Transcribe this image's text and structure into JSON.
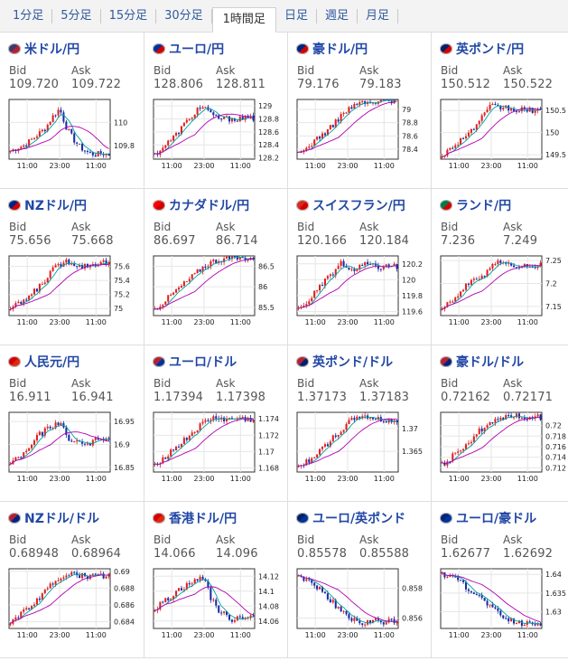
{
  "tabs": [
    "1分足",
    "5分足",
    "15分足",
    "30分足",
    "1時間足",
    "日足",
    "週足",
    "月足"
  ],
  "active_tab": "1時間足",
  "labels": {
    "bid": "Bid",
    "ask": "Ask"
  },
  "colors": {
    "up": "#e02020",
    "down": "#1c2aa6",
    "ma_fast": "#00a0a0",
    "ma_slow": "#b000b0",
    "link": "#2248a6"
  },
  "x_ticks": [
    "11:00",
    "23:00",
    "11:00"
  ],
  "pairs": [
    {
      "name": "米ドル/円",
      "flag": "flag-us-jp-icon",
      "bid": "109.720",
      "ask": "109.722",
      "chart_data": {
        "type": "candlestick",
        "y_ticks": [
          "110",
          "109.8"
        ],
        "ylim": [
          109.68,
          110.2
        ],
        "x_ticks": [
          "11:00",
          "23:00",
          "11:00"
        ],
        "path": [
          109.75,
          109.78,
          109.8,
          109.85,
          109.9,
          109.95,
          110.05,
          110.12,
          109.95,
          109.85,
          109.78,
          109.74,
          109.72,
          109.73,
          109.72
        ]
      }
    },
    {
      "name": "ユーロ/円",
      "flag": "flag-eu-jp-icon",
      "bid": "128.806",
      "ask": "128.811",
      "chart_data": {
        "type": "candlestick",
        "y_ticks": [
          "129",
          "128.8",
          "128.6",
          "128.4",
          "128.2"
        ],
        "ylim": [
          128.18,
          129.1
        ],
        "x_ticks": [
          "11:00",
          "23:00",
          "11:00"
        ],
        "path": [
          128.25,
          128.35,
          128.45,
          128.55,
          128.7,
          128.8,
          128.95,
          129.0,
          128.85,
          128.82,
          128.8,
          128.81,
          128.8,
          128.81,
          128.81
        ]
      }
    },
    {
      "name": "豪ドル/円",
      "flag": "flag-au-jp-icon",
      "bid": "79.176",
      "ask": "79.183",
      "chart_data": {
        "type": "candlestick",
        "y_ticks": [
          "79",
          "78.8",
          "78.6",
          "78.4"
        ],
        "ylim": [
          78.25,
          79.15
        ],
        "x_ticks": [
          "11:00",
          "23:00",
          "11:00"
        ],
        "path": [
          78.32,
          78.4,
          78.5,
          78.6,
          78.65,
          78.78,
          78.9,
          79.0,
          79.05,
          79.12,
          79.08,
          79.1,
          79.15,
          79.12,
          79.18
        ]
      }
    },
    {
      "name": "英ポンド/円",
      "flag": "flag-gb-jp-icon",
      "bid": "150.512",
      "ask": "150.522",
      "chart_data": {
        "type": "candlestick",
        "y_ticks": [
          "150.5",
          "150",
          "149.5"
        ],
        "ylim": [
          149.4,
          150.75
        ],
        "x_ticks": [
          "11:00",
          "23:00",
          "11:00"
        ],
        "path": [
          149.5,
          149.6,
          149.75,
          149.9,
          150.0,
          150.2,
          150.4,
          150.6,
          150.55,
          150.58,
          150.5,
          150.52,
          150.5,
          150.51,
          150.51
        ]
      }
    },
    {
      "name": "NZドル/円",
      "flag": "flag-nz-jp-icon",
      "bid": "75.656",
      "ask": "75.668",
      "chart_data": {
        "type": "candlestick",
        "y_ticks": [
          "75.6",
          "75.4",
          "75.2",
          "75"
        ],
        "ylim": [
          74.9,
          75.75
        ],
        "x_ticks": [
          "11:00",
          "23:00",
          "11:00"
        ],
        "path": [
          75.0,
          75.05,
          75.12,
          75.2,
          75.3,
          75.42,
          75.55,
          75.62,
          75.68,
          75.65,
          75.6,
          75.62,
          75.64,
          75.66,
          75.66
        ]
      }
    },
    {
      "name": "カナダドル/円",
      "flag": "flag-ca-jp-icon",
      "bid": "86.697",
      "ask": "86.714",
      "chart_data": {
        "type": "candlestick",
        "y_ticks": [
          "86.5",
          "86",
          "85.5"
        ],
        "ylim": [
          85.3,
          86.75
        ],
        "x_ticks": [
          "11:00",
          "23:00",
          "11:00"
        ],
        "path": [
          85.45,
          85.6,
          85.75,
          85.9,
          86.05,
          86.2,
          86.35,
          86.5,
          86.6,
          86.65,
          86.68,
          86.7,
          86.69,
          86.7,
          86.7
        ]
      }
    },
    {
      "name": "スイスフラン/円",
      "flag": "flag-ch-jp-icon",
      "bid": "120.166",
      "ask": "120.184",
      "chart_data": {
        "type": "candlestick",
        "y_ticks": [
          "120.2",
          "120",
          "119.8",
          "119.6"
        ],
        "ylim": [
          119.55,
          120.3
        ],
        "x_ticks": [
          "11:00",
          "23:00",
          "11:00"
        ],
        "path": [
          119.62,
          119.7,
          119.8,
          119.9,
          120.0,
          120.1,
          120.2,
          120.15,
          120.1,
          120.18,
          120.2,
          120.15,
          120.17,
          120.16,
          120.17
        ]
      }
    },
    {
      "name": "ランド/円",
      "flag": "flag-za-jp-icon",
      "bid": "7.236",
      "ask": "7.249",
      "chart_data": {
        "type": "candlestick",
        "y_ticks": [
          "7.25",
          "7.2",
          "7.15"
        ],
        "ylim": [
          7.13,
          7.26
        ],
        "x_ticks": [
          "11:00",
          "23:00",
          "11:00"
        ],
        "path": [
          7.15,
          7.16,
          7.17,
          7.19,
          7.2,
          7.21,
          7.22,
          7.24,
          7.25,
          7.24,
          7.24,
          7.23,
          7.24,
          7.24,
          7.24
        ]
      }
    },
    {
      "name": "人民元/円",
      "flag": "flag-cn-jp-icon",
      "bid": "16.911",
      "ask": "16.941",
      "chart_data": {
        "type": "candlestick",
        "y_ticks": [
          "16.95",
          "16.9",
          "16.85"
        ],
        "ylim": [
          16.84,
          16.97
        ],
        "x_ticks": [
          "11:00",
          "23:00",
          "11:00"
        ],
        "path": [
          16.86,
          16.87,
          16.88,
          16.9,
          16.92,
          16.93,
          16.94,
          16.95,
          16.92,
          16.9,
          16.91,
          16.9,
          16.91,
          16.91,
          16.91
        ]
      }
    },
    {
      "name": "ユーロ/ドル",
      "flag": "flag-eu-us-icon",
      "bid": "1.17394",
      "ask": "1.17398",
      "chart_data": {
        "type": "candlestick",
        "y_ticks": [
          "1.174",
          "1.172",
          "1.17",
          "1.168"
        ],
        "ylim": [
          1.1675,
          1.1748
        ],
        "x_ticks": [
          "11:00",
          "23:00",
          "11:00"
        ],
        "path": [
          1.1685,
          1.169,
          1.1698,
          1.1705,
          1.1712,
          1.172,
          1.1728,
          1.1735,
          1.174,
          1.1742,
          1.1738,
          1.174,
          1.1741,
          1.1739,
          1.1739
        ]
      }
    },
    {
      "name": "英ポンド/ドル",
      "flag": "flag-gb-us-icon",
      "bid": "1.37173",
      "ask": "1.37183",
      "chart_data": {
        "type": "candlestick",
        "y_ticks": [
          "1.37",
          "1.365"
        ],
        "ylim": [
          1.3605,
          1.3735
        ],
        "x_ticks": [
          "11:00",
          "23:00",
          "11:00"
        ],
        "path": [
          1.3615,
          1.3625,
          1.3638,
          1.365,
          1.3665,
          1.368,
          1.3695,
          1.371,
          1.3722,
          1.3728,
          1.3725,
          1.372,
          1.3718,
          1.3717,
          1.3717
        ]
      }
    },
    {
      "name": "豪ドル/ドル",
      "flag": "flag-au-us-icon",
      "bid": "0.72162",
      "ask": "0.72171",
      "chart_data": {
        "type": "candlestick",
        "y_ticks": [
          "0.72",
          "0.718",
          "0.716",
          "0.714",
          "0.712"
        ],
        "ylim": [
          0.7112,
          0.7225
        ],
        "x_ticks": [
          "11:00",
          "23:00",
          "11:00"
        ],
        "path": [
          0.7125,
          0.7135,
          0.7148,
          0.716,
          0.7172,
          0.7185,
          0.7198,
          0.7208,
          0.7215,
          0.7218,
          0.722,
          0.7216,
          0.7217,
          0.7216,
          0.7216
        ]
      }
    },
    {
      "name": "NZドル/ドル",
      "flag": "flag-nz-us-icon",
      "bid": "0.68948",
      "ask": "0.68964",
      "chart_data": {
        "type": "candlestick",
        "y_ticks": [
          "0.69",
          "0.688",
          "0.686",
          "0.684"
        ],
        "ylim": [
          0.6832,
          0.6903
        ],
        "x_ticks": [
          "11:00",
          "23:00",
          "11:00"
        ],
        "path": [
          0.684,
          0.6845,
          0.6852,
          0.686,
          0.6868,
          0.6876,
          0.6885,
          0.6892,
          0.6898,
          0.6896,
          0.6895,
          0.6893,
          0.6895,
          0.6895,
          0.6895
        ]
      }
    },
    {
      "name": "香港ドル/円",
      "flag": "flag-hk-jp-icon",
      "bid": "14.066",
      "ask": "14.096",
      "chart_data": {
        "type": "candlestick",
        "y_ticks": [
          "14.12",
          "14.1",
          "14.08",
          "14.06"
        ],
        "ylim": [
          14.05,
          14.13
        ],
        "x_ticks": [
          "11:00",
          "23:00",
          "11:00"
        ],
        "path": [
          14.075,
          14.085,
          14.09,
          14.1,
          14.105,
          14.11,
          14.115,
          14.12,
          14.09,
          14.075,
          14.068,
          14.062,
          14.066,
          14.065,
          14.066
        ]
      }
    },
    {
      "name": "ユーロ/英ポンド",
      "flag": "flag-eu-gb-icon",
      "bid": "0.85578",
      "ask": "0.85588",
      "chart_data": {
        "type": "candlestick",
        "y_ticks": [
          "0.858",
          "0.856"
        ],
        "ylim": [
          0.8553,
          0.8593
        ],
        "x_ticks": [
          "11:00",
          "23:00",
          "11:00"
        ],
        "path": [
          0.8588,
          0.8586,
          0.8583,
          0.858,
          0.8575,
          0.857,
          0.8565,
          0.856,
          0.8558,
          0.8556,
          0.8557,
          0.8558,
          0.8557,
          0.8558,
          0.8558
        ]
      }
    },
    {
      "name": "ユーロ/豪ドル",
      "flag": "flag-eu-au-icon",
      "bid": "1.62677",
      "ask": "1.62692",
      "chart_data": {
        "type": "candlestick",
        "y_ticks": [
          "1.64",
          "1.635",
          "1.63"
        ],
        "ylim": [
          1.6255,
          1.6415
        ],
        "x_ticks": [
          "11:00",
          "23:00",
          "11:00"
        ],
        "path": [
          1.64,
          1.6395,
          1.6385,
          1.6372,
          1.636,
          1.6345,
          1.633,
          1.6312,
          1.6295,
          1.6282,
          1.6275,
          1.627,
          1.6268,
          1.6268,
          1.6268
        ]
      }
    }
  ]
}
